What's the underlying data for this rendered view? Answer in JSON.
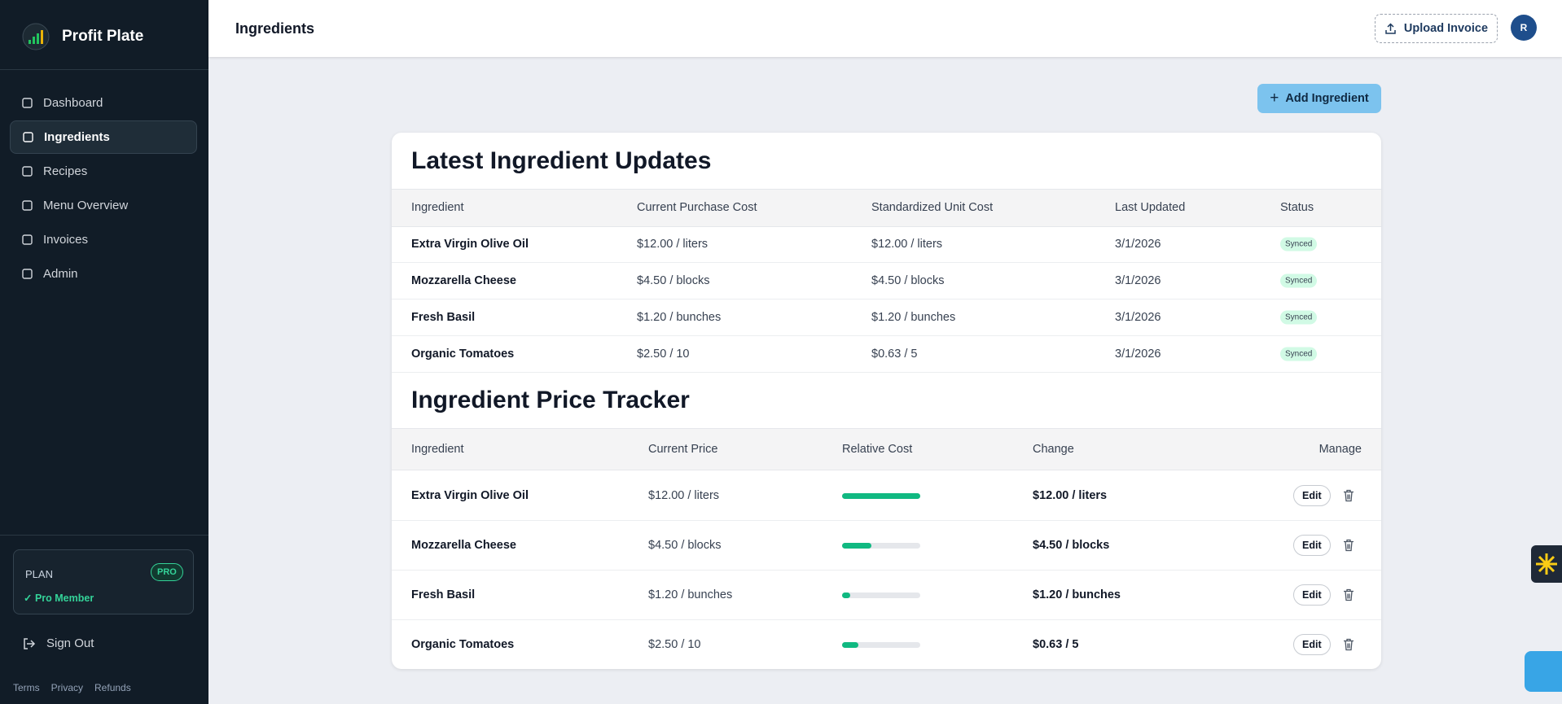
{
  "sidebar": {
    "brand": "Profit Plate",
    "nav": [
      "Dashboard",
      "Ingredients",
      "Recipes",
      "Menu Overview",
      "Invoices",
      "Admin"
    ],
    "plan": {
      "label": "PLAN",
      "badge": "PRO",
      "status": "✓ Pro Member"
    },
    "sign_out": "Sign Out",
    "footer_links": [
      "Terms",
      "Privacy",
      "Refunds"
    ]
  },
  "header": {
    "title": "Ingredients",
    "upload_button": "Upload Invoice",
    "avatar": "R"
  },
  "add_button": "Add Ingredient",
  "latest_updates": {
    "title": "Latest Ingredient Updates",
    "columns": [
      "Ingredient",
      "Current Purchase Cost",
      "Standardized Unit Cost",
      "Last Updated",
      "Status"
    ],
    "rows": [
      [
        "Extra Virgin Olive Oil",
        "$12.00 / liters",
        "$12.00 / liters",
        "3/1/2026",
        "Synced"
      ],
      [
        "Mozzarella Cheese",
        "$4.50 / blocks",
        "$4.50 / blocks",
        "3/1/2026",
        "Synced"
      ],
      [
        "Fresh Basil",
        "$1.20 / bunches",
        "$1.20 / bunches",
        "3/1/2026",
        "Synced"
      ],
      [
        "Organic Tomatoes",
        "$2.50 / 10",
        "$0.63 / 5",
        "3/1/2026",
        "Synced"
      ]
    ]
  },
  "price_tracker": {
    "title": "Ingredient Price Tracker",
    "columns": [
      "Ingredient",
      "Current Price",
      "Relative Cost",
      "Change",
      "Manage"
    ],
    "rows": [
      [
        "Extra Virgin Olive Oil",
        "$12.00 / liters",
        "$12.00 / liters"
      ],
      [
        "Mozzarella Cheese",
        "$4.50 / blocks",
        "$4.50 / blocks"
      ],
      [
        "Fresh Basil",
        "$1.20 / bunches",
        "$1.20 / bunches"
      ],
      [
        "Organic Tomatoes",
        "$2.50 / 10",
        "$0.63 / 5"
      ]
    ],
    "relative_cost": [
      100,
      38,
      10,
      21
    ],
    "edit_label": "Edit"
  }
}
